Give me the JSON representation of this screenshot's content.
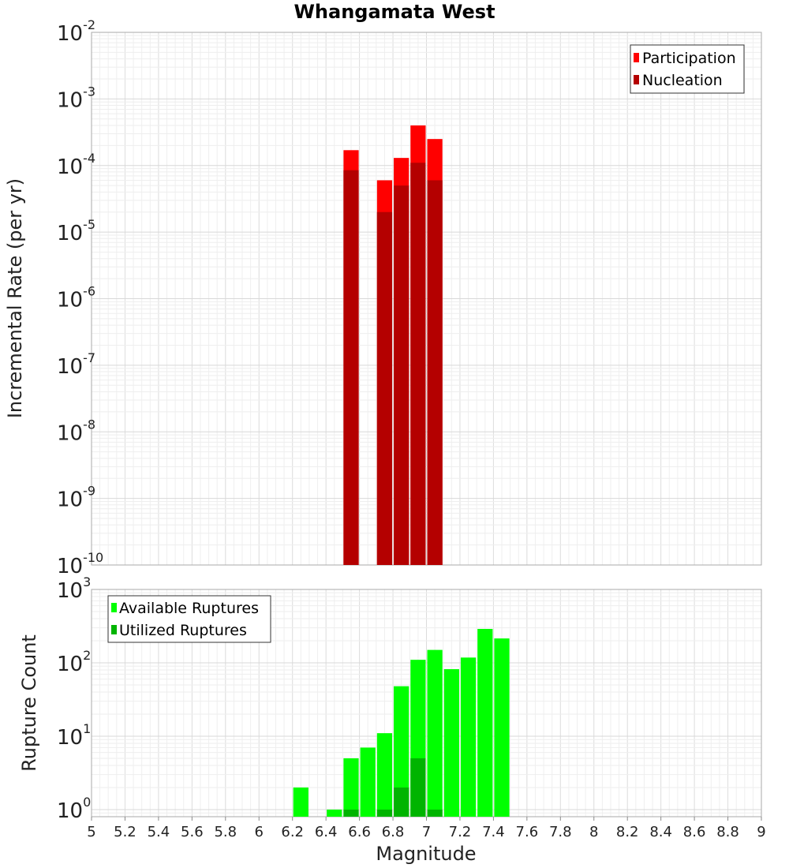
{
  "chart_data": [
    {
      "type": "bar",
      "title": "Whangamata West",
      "xlabel": "",
      "ylabel": "Incremental Rate (per yr)",
      "yscale": "log",
      "ylim": [
        1e-10,
        0.01
      ],
      "xlim": [
        5,
        9
      ],
      "bin_width": 0.1,
      "grid": true,
      "legend_position": "top-right",
      "ytick_labels": [
        {
          "base": "10",
          "exp": "-10"
        },
        {
          "base": "10",
          "exp": "-9"
        },
        {
          "base": "10",
          "exp": "-8"
        },
        {
          "base": "10",
          "exp": "-7"
        },
        {
          "base": "10",
          "exp": "-6"
        },
        {
          "base": "10",
          "exp": "-5"
        },
        {
          "base": "10",
          "exp": "-4"
        },
        {
          "base": "10",
          "exp": "-3"
        },
        {
          "base": "10",
          "exp": "-2"
        }
      ],
      "series": [
        {
          "name": "Participation",
          "color": "#ff0000",
          "x": [
            6.55,
            6.75,
            6.85,
            6.95,
            7.05
          ],
          "values": [
            0.00017,
            6e-05,
            0.00013,
            0.0004,
            0.00025
          ]
        },
        {
          "name": "Nucleation",
          "color": "#b40000",
          "x": [
            6.55,
            6.75,
            6.85,
            6.95,
            7.05
          ],
          "values": [
            8.5e-05,
            2e-05,
            5e-05,
            0.00011,
            6e-05
          ]
        }
      ]
    },
    {
      "type": "bar",
      "title": "",
      "xlabel": "Magnitude",
      "ylabel": "Rupture Count",
      "yscale": "log",
      "ylim": [
        0.8,
        1000
      ],
      "xlim": [
        5,
        9
      ],
      "bin_width": 0.1,
      "grid": true,
      "legend_position": "top-left",
      "xtick_labels": [
        "5",
        "5.2",
        "5.4",
        "5.6",
        "5.8",
        "6",
        "6.2",
        "6.4",
        "6.6",
        "6.8",
        "7",
        "7.2",
        "7.4",
        "7.6",
        "7.8",
        "8",
        "8.2",
        "8.4",
        "8.6",
        "8.8",
        "9"
      ],
      "ytick_labels": [
        {
          "base": "10",
          "exp": "0"
        },
        {
          "base": "10",
          "exp": "1"
        },
        {
          "base": "10",
          "exp": "2"
        },
        {
          "base": "10",
          "exp": "3"
        }
      ],
      "series": [
        {
          "name": "Available Ruptures",
          "color": "#00ff00",
          "x": [
            6.25,
            6.45,
            6.55,
            6.65,
            6.75,
            6.85,
            6.95,
            7.05,
            7.15,
            7.25,
            7.35,
            7.45
          ],
          "values": [
            2,
            1,
            5,
            7,
            11,
            48,
            110,
            150,
            82,
            118,
            290,
            215
          ]
        },
        {
          "name": "Utilized Ruptures",
          "color": "#00b400",
          "x": [
            6.55,
            6.75,
            6.85,
            6.95,
            7.05
          ],
          "values": [
            1,
            1,
            2,
            5,
            1
          ]
        }
      ]
    }
  ]
}
